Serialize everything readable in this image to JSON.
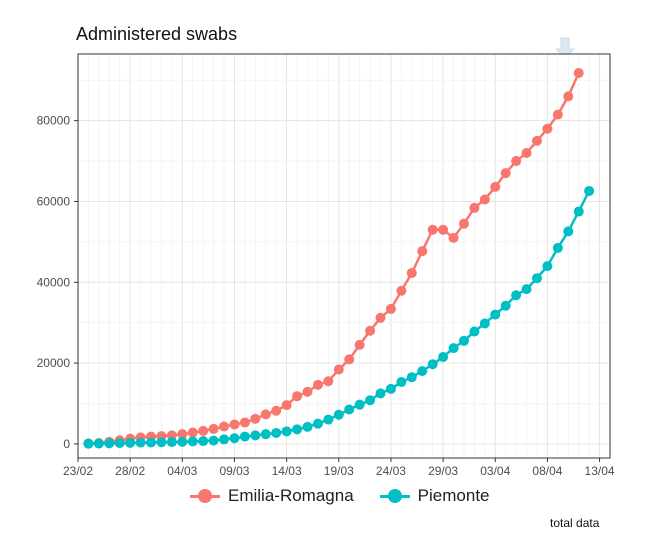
{
  "chart_data": {
    "type": "line",
    "title": "Administered swabs",
    "xlabel": "",
    "ylabel": "",
    "x_tick_labels": [
      "23/02",
      "28/02",
      "04/03",
      "09/03",
      "14/03",
      "19/03",
      "24/03",
      "29/03",
      "03/04",
      "08/04",
      "13/04"
    ],
    "y_tick_labels": [
      "0",
      "20000",
      "40000",
      "60000",
      "80000"
    ],
    "y_ticks": [
      0,
      20000,
      40000,
      60000,
      80000
    ],
    "ylim": [
      -3500,
      96500
    ],
    "grid": true,
    "legend_position": "bottom",
    "start_date": "24/02",
    "x_day_range": [
      -1,
      50
    ],
    "series": [
      {
        "name": "Emilia-Romagna",
        "color": "#F8766D",
        "values": [
          100,
          200,
          500,
          900,
          1300,
          1600,
          1800,
          1900,
          2100,
          2400,
          2800,
          3200,
          3700,
          4300,
          4800,
          5300,
          6200,
          7300,
          8200,
          9600,
          11800,
          12900,
          14600,
          15500,
          18400,
          20900,
          24500,
          28000,
          31200,
          33400,
          37900,
          42300,
          47700,
          53000,
          53000,
          51000,
          54500,
          58400,
          60500,
          63600,
          67000,
          70000,
          72000,
          75000,
          78000,
          81500,
          86000,
          91800
        ]
      },
      {
        "name": "Piemonte",
        "color": "#00BFC4",
        "values": [
          50,
          80,
          120,
          180,
          240,
          300,
          350,
          400,
          450,
          500,
          600,
          700,
          800,
          1100,
          1400,
          1800,
          2100,
          2400,
          2700,
          3100,
          3600,
          4200,
          5000,
          6000,
          7200,
          8500,
          9700,
          10800,
          12500,
          13600,
          15300,
          16500,
          18000,
          19700,
          21500,
          23700,
          25500,
          27800,
          29800,
          32000,
          34200,
          36800,
          38300,
          41000,
          44000,
          48500,
          52600,
          57500,
          62600
        ]
      }
    ]
  },
  "footnote": "total data",
  "icons": {
    "download": "download-icon"
  }
}
